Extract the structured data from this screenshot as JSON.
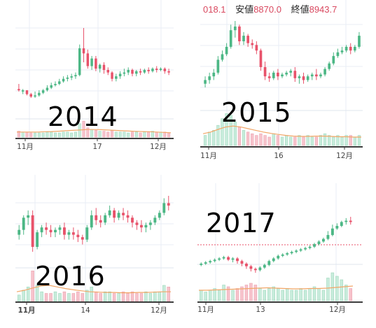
{
  "colors": {
    "up": "#4cb785",
    "down": "#e8526a",
    "vol_up": "#c8ecdc",
    "vol_down": "#f7c3cc",
    "ma": "#f2a667",
    "grid": "#e8eef5",
    "axis": "#666666",
    "axis_bottom": "#3d3d3d"
  },
  "chart_data": [
    {
      "type": "candlestick",
      "title": "2014",
      "x_ticks": [
        "11月",
        "17",
        "12月"
      ],
      "price": [
        [
          100,
          104,
          99,
          98
        ],
        [
          98,
          100,
          99,
          96
        ],
        [
          99,
          99,
          96,
          95
        ],
        [
          96,
          97,
          94,
          93
        ],
        [
          94,
          98,
          95,
          93
        ],
        [
          95,
          99,
          97,
          94
        ],
        [
          97,
          100,
          99,
          96
        ],
        [
          99,
          103,
          101,
          98
        ],
        [
          101,
          105,
          103,
          100
        ],
        [
          103,
          106,
          104,
          102
        ],
        [
          104,
          108,
          106,
          103
        ],
        [
          106,
          110,
          108,
          105
        ],
        [
          108,
          111,
          109,
          106
        ],
        [
          109,
          112,
          110,
          107
        ],
        [
          110,
          113,
          111,
          108
        ],
        [
          111,
          135,
          132,
          110
        ],
        [
          132,
          148,
          128,
          121
        ],
        [
          128,
          131,
          118,
          116
        ],
        [
          118,
          126,
          124,
          115
        ],
        [
          124,
          126,
          116,
          114
        ],
        [
          116,
          120,
          119,
          113
        ],
        [
          119,
          121,
          115,
          112
        ],
        [
          115,
          117,
          113,
          111
        ],
        [
          113,
          114,
          108,
          106
        ],
        [
          108,
          112,
          110,
          106
        ],
        [
          110,
          114,
          112,
          108
        ],
        [
          112,
          116,
          113,
          110
        ],
        [
          113,
          117,
          115,
          111
        ],
        [
          115,
          116,
          112,
          110
        ],
        [
          112,
          115,
          114,
          110
        ],
        [
          114,
          116,
          113,
          111
        ],
        [
          113,
          116,
          115,
          112
        ],
        [
          115,
          117,
          114,
          112
        ],
        [
          114,
          117,
          116,
          113
        ],
        [
          116,
          118,
          115,
          113
        ],
        [
          115,
          117,
          116,
          114
        ],
        [
          116,
          117,
          114,
          112
        ],
        [
          114,
          116,
          113,
          111
        ]
      ],
      "volume": [
        0.35,
        0.3,
        0.3,
        0.25,
        0.25,
        0.25,
        0.25,
        0.3,
        0.3,
        0.25,
        0.25,
        0.3,
        0.3,
        0.25,
        0.3,
        0.8,
        0.95,
        0.55,
        0.45,
        0.4,
        0.35,
        0.35,
        0.3,
        0.4,
        0.3,
        0.3,
        0.3,
        0.25,
        0.3,
        0.3,
        0.25,
        0.3,
        0.3,
        0.35,
        0.3,
        0.3,
        0.3,
        0.25
      ],
      "ma": [
        0.3,
        0.3,
        0.3,
        0.3,
        0.32,
        0.33,
        0.35,
        0.38,
        0.4,
        0.42,
        0.45,
        0.45,
        0.44,
        0.42,
        0.4,
        0.38,
        0.36,
        0.34,
        0.33,
        0.32,
        0.3,
        0.28,
        0.26
      ]
    },
    {
      "type": "candlestick",
      "title": "2015",
      "header": {
        "prefix": "018.1",
        "low_label": "安値",
        "low_value": "8870.0",
        "close_label": "終値",
        "close_value": "8943.7"
      },
      "x_ticks": [
        "11月",
        "16",
        "12月"
      ],
      "price": [
        [
          100,
          104,
          102,
          98
        ],
        [
          102,
          106,
          104,
          100
        ],
        [
          104,
          108,
          106,
          102
        ],
        [
          106,
          115,
          113,
          105
        ],
        [
          113,
          118,
          116,
          112
        ],
        [
          116,
          122,
          120,
          115
        ],
        [
          120,
          132,
          129,
          119
        ],
        [
          129,
          134,
          131,
          125
        ],
        [
          131,
          132,
          123,
          121
        ],
        [
          123,
          128,
          126,
          121
        ],
        [
          126,
          127,
          122,
          120
        ],
        [
          122,
          124,
          121,
          119
        ],
        [
          121,
          123,
          118,
          116
        ],
        [
          118,
          119,
          109,
          107
        ],
        [
          109,
          112,
          104,
          102
        ],
        [
          104,
          106,
          103,
          101
        ],
        [
          103,
          107,
          106,
          102
        ],
        [
          106,
          108,
          104,
          102
        ],
        [
          104,
          106,
          105,
          103
        ],
        [
          105,
          107,
          106,
          104
        ],
        [
          106,
          108,
          107,
          104
        ],
        [
          107,
          109,
          103,
          101
        ],
        [
          103,
          105,
          104,
          100
        ],
        [
          104,
          106,
          102,
          100
        ],
        [
          102,
          105,
          104,
          101
        ],
        [
          104,
          106,
          105,
          102
        ],
        [
          105,
          108,
          104,
          102
        ],
        [
          104,
          106,
          105,
          103
        ],
        [
          105,
          109,
          108,
          104
        ],
        [
          108,
          112,
          111,
          107
        ],
        [
          111,
          117,
          115,
          110
        ],
        [
          115,
          119,
          117,
          114
        ],
        [
          117,
          120,
          118,
          116
        ],
        [
          118,
          121,
          120,
          117
        ],
        [
          120,
          122,
          118,
          116
        ],
        [
          118,
          121,
          120,
          117
        ],
        [
          120,
          128,
          126,
          119
        ]
      ],
      "volume": [
        0.3,
        0.4,
        0.45,
        0.6,
        0.8,
        0.95,
        0.9,
        0.7,
        0.55,
        0.45,
        0.4,
        0.35,
        0.3,
        0.35,
        0.3,
        0.25,
        0.35,
        0.3,
        0.25,
        0.3,
        0.25,
        0.25,
        0.3,
        0.25,
        0.3,
        0.25,
        0.25,
        0.3,
        0.35,
        0.3,
        0.25,
        0.3,
        0.25,
        0.3,
        0.3,
        0.25,
        0.3
      ],
      "ma": [
        0.35,
        0.4,
        0.48,
        0.55,
        0.58,
        0.55,
        0.5,
        0.45,
        0.4,
        0.36,
        0.33,
        0.3,
        0.28,
        0.27,
        0.27,
        0.28,
        0.28,
        0.27,
        0.26,
        0.26,
        0.25,
        0.25
      ]
    },
    {
      "type": "candlestick",
      "title": "2016",
      "x_ticks": [
        "11月",
        "14",
        "12月"
      ],
      "price": [
        [
          100,
          104,
          102,
          98
        ],
        [
          102,
          108,
          107,
          100
        ],
        [
          107,
          110,
          108,
          104
        ],
        [
          108,
          110,
          95,
          93
        ],
        [
          95,
          102,
          101,
          94
        ],
        [
          101,
          104,
          103,
          99
        ],
        [
          103,
          105,
          102,
          100
        ],
        [
          102,
          104,
          101,
          99
        ],
        [
          101,
          103,
          102,
          99
        ],
        [
          102,
          104,
          103,
          100
        ],
        [
          103,
          105,
          100,
          98
        ],
        [
          100,
          102,
          101,
          98
        ],
        [
          101,
          103,
          100,
          98
        ],
        [
          100,
          102,
          99,
          97
        ],
        [
          99,
          100,
          98,
          96
        ],
        [
          98,
          104,
          103,
          97
        ],
        [
          103,
          110,
          108,
          102
        ],
        [
          108,
          111,
          106,
          104
        ],
        [
          106,
          108,
          105,
          103
        ],
        [
          105,
          109,
          108,
          104
        ],
        [
          108,
          112,
          110,
          107
        ],
        [
          110,
          111,
          107,
          105
        ],
        [
          107,
          110,
          109,
          106
        ],
        [
          109,
          111,
          108,
          106
        ],
        [
          108,
          110,
          107,
          105
        ],
        [
          107,
          108,
          105,
          103
        ],
        [
          105,
          106,
          104,
          102
        ],
        [
          104,
          106,
          103,
          101
        ],
        [
          103,
          105,
          104,
          101
        ],
        [
          104,
          106,
          105,
          102
        ],
        [
          105,
          108,
          107,
          104
        ],
        [
          107,
          110,
          109,
          106
        ],
        [
          109,
          115,
          113,
          108
        ],
        [
          113,
          116,
          112,
          110
        ]
      ],
      "volume": [
        0.2,
        0.35,
        0.45,
        0.95,
        0.5,
        0.3,
        0.25,
        0.25,
        0.3,
        0.25,
        0.3,
        0.25,
        0.25,
        0.3,
        0.25,
        0.35,
        0.45,
        0.3,
        0.25,
        0.3,
        0.3,
        0.25,
        0.25,
        0.3,
        0.25,
        0.3,
        0.25,
        0.25,
        0.3,
        0.25,
        0.3,
        0.3,
        0.5,
        0.45
      ],
      "ma": [
        0.3,
        0.35,
        0.42,
        0.48,
        0.5,
        0.45,
        0.4,
        0.36,
        0.33,
        0.3,
        0.29,
        0.28,
        0.28,
        0.27,
        0.27,
        0.28,
        0.28,
        0.29,
        0.3,
        0.3
      ]
    },
    {
      "type": "candlestick",
      "title": "2017",
      "x_ticks": [
        "11月",
        "13",
        "12月"
      ],
      "price": [
        [
          100,
          102,
          101,
          99
        ],
        [
          101,
          103,
          102,
          100
        ],
        [
          102,
          104,
          103,
          101
        ],
        [
          103,
          105,
          104,
          102
        ],
        [
          104,
          106,
          105,
          103
        ],
        [
          105,
          107,
          106,
          104
        ],
        [
          106,
          107,
          104,
          103
        ],
        [
          104,
          106,
          105,
          102
        ],
        [
          105,
          106,
          103,
          101
        ],
        [
          103,
          104,
          101,
          99
        ],
        [
          101,
          102,
          99,
          97
        ],
        [
          99,
          100,
          97,
          95
        ],
        [
          97,
          98,
          96,
          94
        ],
        [
          96,
          99,
          98,
          95
        ],
        [
          98,
          101,
          100,
          97
        ],
        [
          100,
          104,
          103,
          99
        ],
        [
          103,
          106,
          105,
          102
        ],
        [
          105,
          108,
          107,
          104
        ],
        [
          107,
          109,
          108,
          106
        ],
        [
          108,
          110,
          109,
          107
        ],
        [
          109,
          111,
          110,
          108
        ],
        [
          110,
          112,
          111,
          109
        ],
        [
          111,
          113,
          112,
          110
        ],
        [
          112,
          114,
          113,
          111
        ],
        [
          113,
          115,
          114,
          112
        ],
        [
          114,
          117,
          116,
          113
        ],
        [
          116,
          119,
          118,
          115
        ],
        [
          118,
          121,
          120,
          117
        ],
        [
          120,
          126,
          123,
          119
        ],
        [
          123,
          131,
          128,
          122
        ],
        [
          128,
          132,
          130,
          127
        ],
        [
          130,
          134,
          133,
          129
        ],
        [
          133,
          136,
          134,
          131
        ],
        [
          134,
          137,
          133,
          131
        ]
      ],
      "volume": [
        0.3,
        0.25,
        0.3,
        0.35,
        0.3,
        0.45,
        0.4,
        0.3,
        0.35,
        0.4,
        0.45,
        0.5,
        0.45,
        0.35,
        0.3,
        0.35,
        0.4,
        0.35,
        0.3,
        0.35,
        0.3,
        0.3,
        0.35,
        0.3,
        0.35,
        0.4,
        0.35,
        0.3,
        0.65,
        0.8,
        0.7,
        0.6,
        0.45,
        0.35
      ],
      "ma": [
        0.3,
        0.3,
        0.31,
        0.32,
        0.33,
        0.34,
        0.35,
        0.36,
        0.37,
        0.36,
        0.35,
        0.34,
        0.34,
        0.35,
        0.35,
        0.36,
        0.38,
        0.4,
        0.42
      ]
    }
  ]
}
